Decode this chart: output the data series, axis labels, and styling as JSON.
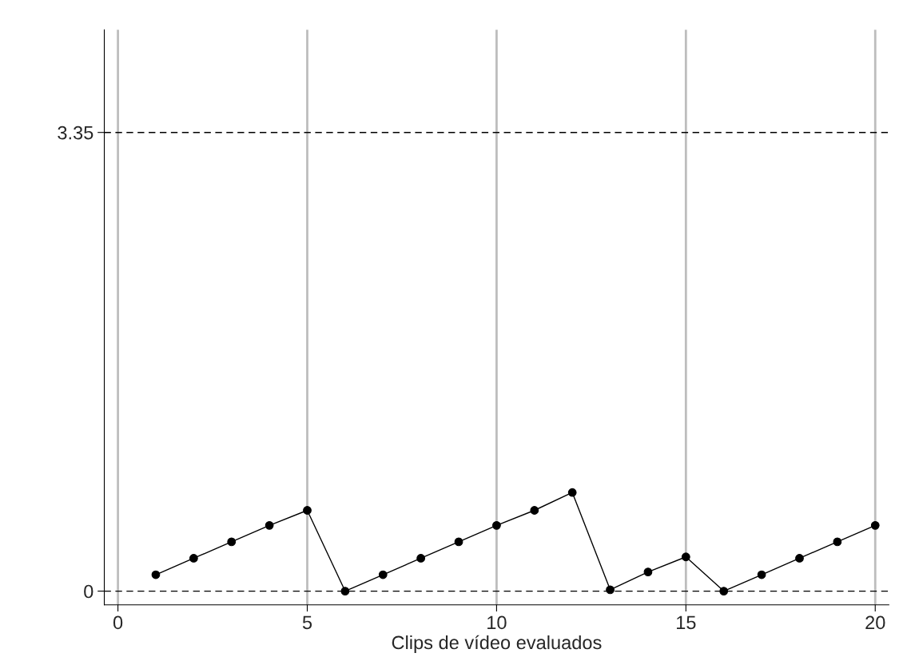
{
  "chart_data": {
    "type": "line",
    "xlabel": "Clips de vídeo evaluados",
    "x": [
      1,
      2,
      3,
      4,
      5,
      6,
      7,
      8,
      9,
      10,
      11,
      12,
      13,
      14,
      15,
      16,
      17,
      18,
      19,
      20
    ],
    "series": [
      {
        "color": "#000000",
        "values": [
          0.12,
          0.24,
          0.36,
          0.48,
          0.59,
          0,
          0.12,
          0.24,
          0.36,
          0.48,
          0.59,
          0.72,
          0.01,
          0.14,
          0.25,
          0,
          0.12,
          0.24,
          0.36,
          0.48
        ]
      }
    ],
    "marker": "circle",
    "line_style": "solid",
    "xlim": [
      -0.36,
      20.36
    ],
    "xticks": [
      0,
      5,
      10,
      15,
      20
    ],
    "ylim": [
      -0.1,
      4.1
    ],
    "yticks": [
      0,
      3.35
    ],
    "grid": "x",
    "ref_lines": [
      {
        "axis": "y",
        "value": 0,
        "color": "#000000",
        "line_style": "dashed"
      },
      {
        "axis": "y",
        "value": 3.35,
        "color": "#000000",
        "line_style": "dashed"
      }
    ]
  }
}
